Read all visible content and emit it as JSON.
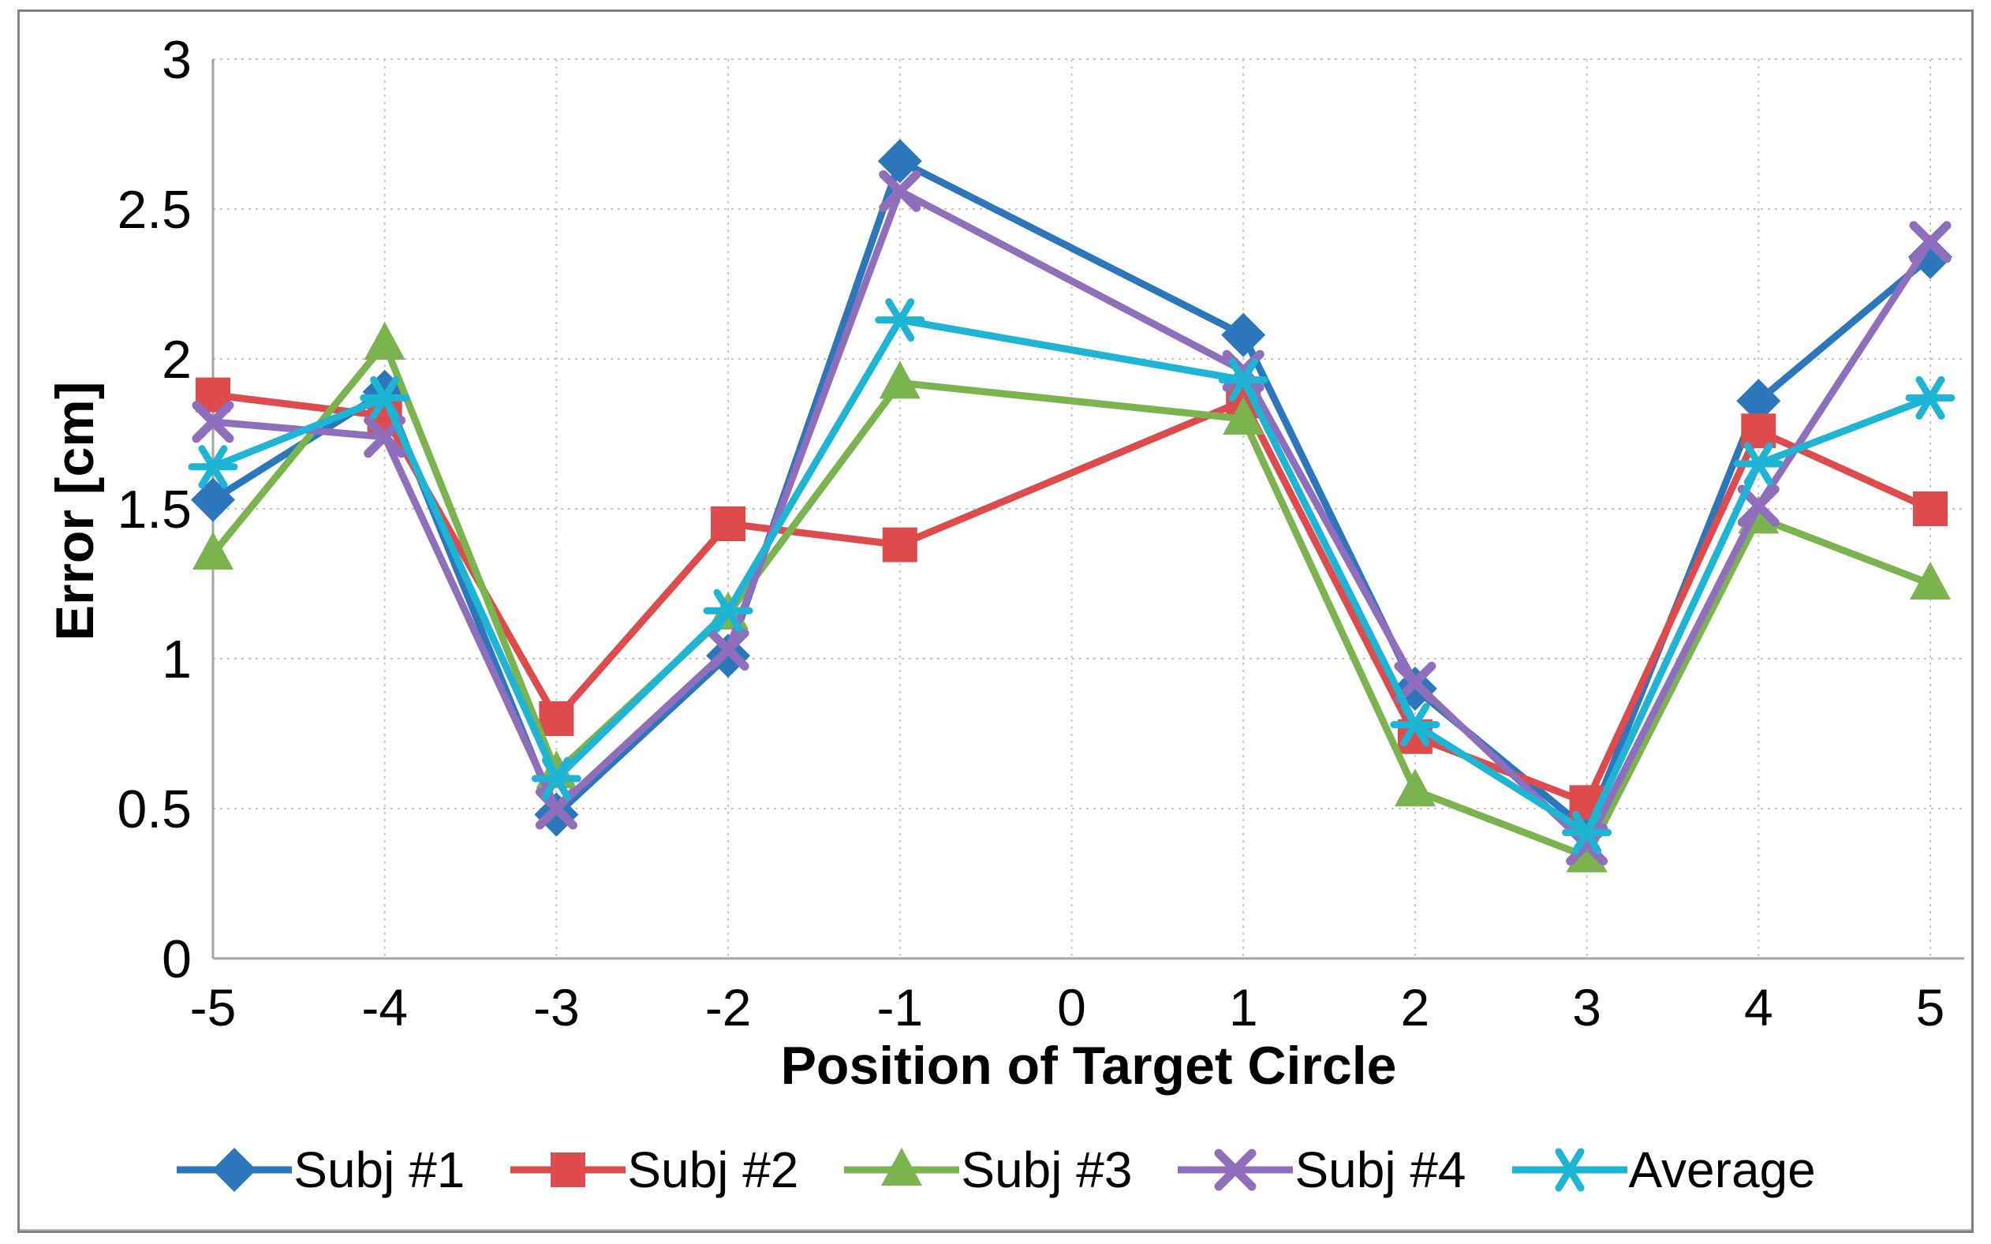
{
  "window": {
    "background": "#FFFFFF",
    "border_color": "#818181"
  },
  "colors": {
    "gridline": "#C6C6C6",
    "axis_line": "#A3A3A3",
    "text": "#000000"
  },
  "chart_data": {
    "type": "line",
    "title": "",
    "xlabel": "Position of Target Circle",
    "ylabel": "Error [cm]",
    "x": [
      -5,
      -4,
      -3,
      -2,
      -1,
      1,
      2,
      3,
      4,
      5
    ],
    "xlim": [
      -5,
      5
    ],
    "ylim": [
      0,
      3
    ],
    "xticks": [
      "-5",
      "-4",
      "-3",
      "-2",
      "-1",
      "0",
      "1",
      "2",
      "3",
      "4",
      "5"
    ],
    "yticks": [
      "0",
      "0.5",
      "1",
      "1.5",
      "2",
      "2.5",
      "3"
    ],
    "grid": "dashed-both-axes",
    "legend_position": "bottom",
    "series": [
      {
        "name": "Subj #1",
        "color": "#2C77BC",
        "marker": "diamond",
        "values": [
          1.53,
          1.89,
          0.48,
          1.01,
          2.66,
          2.08,
          0.9,
          0.43,
          1.86,
          2.34
        ]
      },
      {
        "name": "Subj #2",
        "color": "#DD4B4C",
        "marker": "square",
        "values": [
          1.88,
          1.81,
          0.8,
          1.45,
          1.38,
          1.86,
          0.74,
          0.52,
          1.76,
          1.5
        ]
      },
      {
        "name": "Subj #3",
        "color": "#7BB44E",
        "marker": "triangle",
        "values": [
          1.35,
          2.05,
          0.62,
          1.15,
          1.92,
          1.8,
          0.56,
          0.34,
          1.47,
          1.25
        ]
      },
      {
        "name": "Subj #4",
        "color": "#8F6FBC",
        "marker": "x",
        "values": [
          1.79,
          1.74,
          0.5,
          1.03,
          2.56,
          1.96,
          0.92,
          0.38,
          1.51,
          2.39
        ]
      },
      {
        "name": "Average",
        "color": "#1EB4D4",
        "marker": "asterisk",
        "values": [
          1.64,
          1.87,
          0.6,
          1.16,
          2.13,
          1.93,
          0.78,
          0.42,
          1.65,
          1.87
        ]
      }
    ]
  }
}
